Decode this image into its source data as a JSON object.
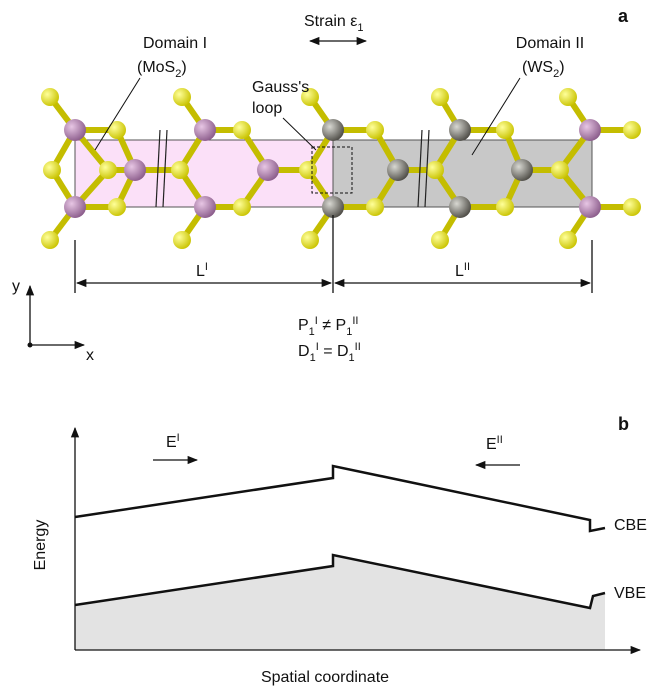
{
  "panel_a": {
    "label": "a",
    "strain": [
      "Strain ε",
      "1"
    ],
    "domain_1": {
      "name": "Domain I",
      "material": [
        "(MoS",
        "2",
        ")"
      ]
    },
    "domain_2": {
      "name": "Domain II",
      "material": [
        "(WS",
        "2",
        ")"
      ]
    },
    "gauss_loop": [
      "Gauss's",
      "loop"
    ],
    "length_1": [
      "L",
      "I"
    ],
    "length_2": [
      "L",
      "II"
    ],
    "axis_y": "y",
    "axis_x": "x",
    "p_relation": [
      "P",
      "1",
      "I",
      " ≠ P",
      "1",
      "II"
    ],
    "d_relation": [
      "D",
      "1",
      "I",
      " = D",
      "1",
      "II"
    ]
  },
  "panel_b": {
    "label": "b",
    "field_1": [
      "E",
      "I"
    ],
    "field_2": [
      "E",
      "II"
    ],
    "cbe": "CBE",
    "vbe": "VBE",
    "y_axis_title": "Energy",
    "x_axis_title": "Spatial coordinate"
  }
}
